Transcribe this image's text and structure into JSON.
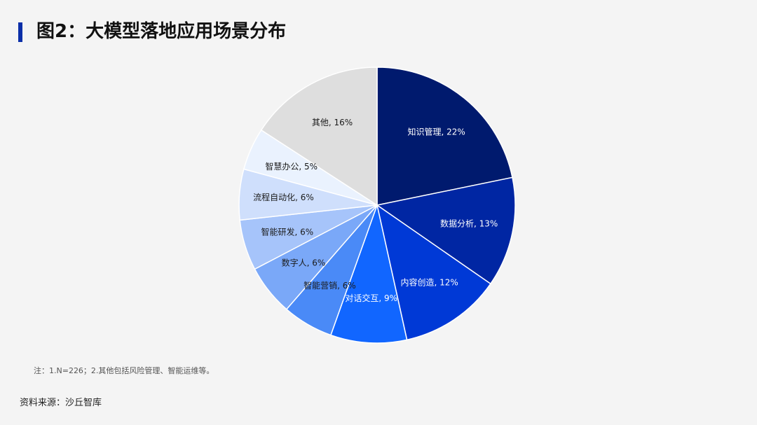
{
  "title": "图2：大模型落地应用场景分布",
  "note": "注：1.N=226；2.其他包括风险管理、智能运维等。",
  "source": "资料来源：沙丘智库",
  "chart_data": {
    "type": "pie",
    "unit": "%",
    "slices": [
      {
        "label": "知识管理",
        "value": 22,
        "color": "#001a6e",
        "text_color": "#ffffff"
      },
      {
        "label": "数据分析",
        "value": 13,
        "color": "#0026a3",
        "text_color": "#ffffff"
      },
      {
        "label": "内容创造",
        "value": 12,
        "color": "#0039d6",
        "text_color": "#ffffff"
      },
      {
        "label": "对话交互",
        "value": 9,
        "color": "#1166ff",
        "text_color": "#ffffff"
      },
      {
        "label": "智能营销",
        "value": 6,
        "color": "#4a8af7",
        "text_color": "#1b1b1b"
      },
      {
        "label": "数字人",
        "value": 6,
        "color": "#7aa8f8",
        "text_color": "#1b1b1b"
      },
      {
        "label": "智能研发",
        "value": 6,
        "color": "#a6c4fa",
        "text_color": "#1b1b1b"
      },
      {
        "label": "流程自动化",
        "value": 6,
        "color": "#cfdffc",
        "text_color": "#1b1b1b"
      },
      {
        "label": "智慧办公",
        "value": 5,
        "color": "#eaf2fe",
        "text_color": "#1b1b1b"
      },
      {
        "label": "其他",
        "value": 16,
        "color": "#dedede",
        "text_color": "#1b1b1b"
      }
    ]
  }
}
